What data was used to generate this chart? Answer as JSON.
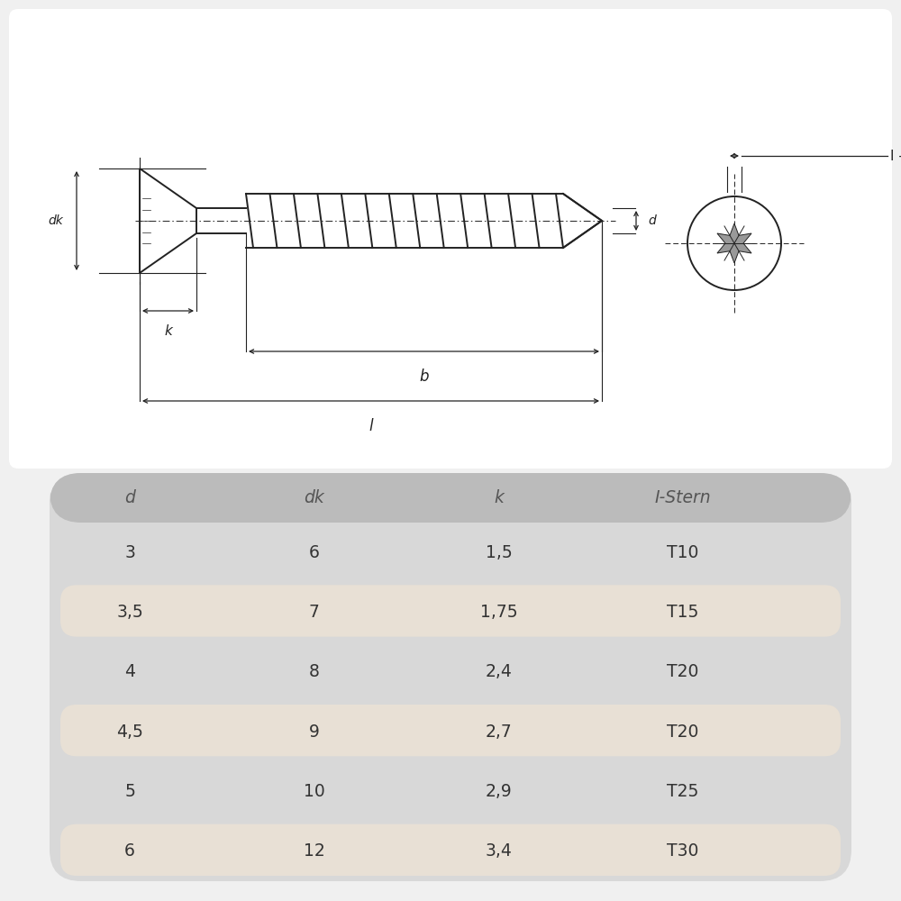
{
  "background_color": "#f0f0f0",
  "table_bg": "#d8d8d8",
  "row_bg_alt": "#e8e0d5",
  "header_bg": "#bbbbbb",
  "table_columns": [
    "d",
    "dk",
    "k",
    "I-Stern"
  ],
  "table_data": [
    [
      "3",
      "6",
      "1,5",
      "T10"
    ],
    [
      "3,5",
      "7",
      "1,75",
      "T15"
    ],
    [
      "4",
      "8",
      "2,4",
      "T20"
    ],
    [
      "4,5",
      "9",
      "2,7",
      "T20"
    ],
    [
      "5",
      "10",
      "2,9",
      "T25"
    ],
    [
      "6",
      "12",
      "3,4",
      "T30"
    ]
  ],
  "line_color": "#222222",
  "text_color": "#333333",
  "header_text_color": "#555555"
}
